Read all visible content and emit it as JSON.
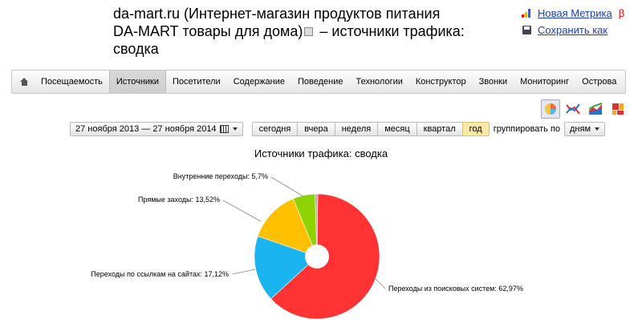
{
  "header": {
    "title_line1": "da-mart.ru (Интернет-магазин продуктов питания",
    "title_line2": "DA-MART товары для дома)",
    "title_suffix": " – источники трафика:",
    "title_line3": "сводка"
  },
  "top_links": {
    "new_metrika": "Новая Метрика",
    "beta": "β",
    "save_as": "Сохранить как"
  },
  "nav": {
    "items": [
      "Посещаемость",
      "Источники",
      "Посетители",
      "Содержание",
      "Поведение",
      "Технологии",
      "Конструктор",
      "Звонки",
      "Мониторинг",
      "Острова"
    ],
    "active_index": 1
  },
  "toolbar": {
    "date_range": "27 ноября 2013 — 27 ноября 2014",
    "periods": [
      "сегодня",
      "вчера",
      "неделя",
      "месяц",
      "квартал",
      "год"
    ],
    "selected_period": "год",
    "group_label": "группировать по",
    "group_value": "дням"
  },
  "chart_data": {
    "type": "pie",
    "title": "Источники трафика: сводка",
    "slices": [
      {
        "label": "Переходы из поисковых систем",
        "value": 62.97,
        "value_text": "62,97%",
        "color": "#ff3333"
      },
      {
        "label": "Переходы по ссылкам на сайтах",
        "value": 17.12,
        "value_text": "17,12%",
        "color": "#1ab4f0"
      },
      {
        "label": "Прямые заходы",
        "value": 13.52,
        "value_text": "13,52%",
        "color": "#ffc000"
      },
      {
        "label": "Внутренние переходы",
        "value": 5.7,
        "value_text": "5,7%",
        "color": "#8ed200"
      },
      {
        "label": "",
        "value": 0.69,
        "value_text": "",
        "color": "#b0b0b0"
      }
    ]
  },
  "colors": {
    "link": "#1a3dc1",
    "beta": "#e00000",
    "selected_period_bg": "#fbe8a6"
  }
}
